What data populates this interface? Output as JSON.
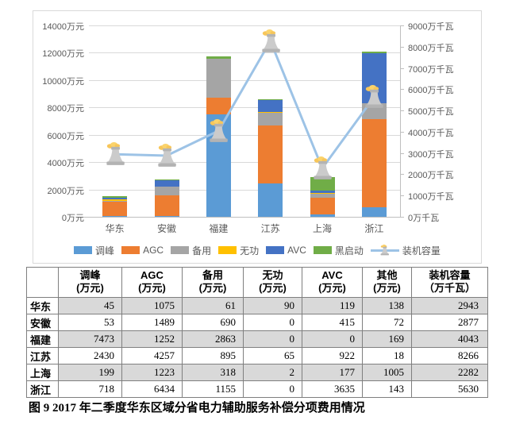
{
  "figure": {
    "caption": "图 9  2017 年二季度华东区域分省电力辅助服务补偿分项费用情况"
  },
  "chart_data": {
    "type": "bar",
    "subtype": "stacked-bar-with-line-overlay",
    "categories": [
      "华东",
      "安徽",
      "福建",
      "江苏",
      "上海",
      "浙江"
    ],
    "series": [
      {
        "name": "调峰",
        "role": "bar",
        "axis": "left",
        "color": "#5b9bd5",
        "values": [
          45,
          53,
          7473,
          2430,
          199,
          718
        ]
      },
      {
        "name": "AGC",
        "role": "bar",
        "axis": "left",
        "color": "#ed7d31",
        "values": [
          1075,
          1489,
          1252,
          4257,
          1223,
          6434
        ]
      },
      {
        "name": "备用",
        "role": "bar",
        "axis": "left",
        "color": "#a5a5a5",
        "values": [
          61,
          690,
          2863,
          895,
          318,
          1155
        ]
      },
      {
        "name": "无功",
        "role": "bar",
        "axis": "left",
        "color": "#ffc000",
        "values": [
          90,
          0,
          0,
          65,
          2,
          0
        ]
      },
      {
        "name": "AVC",
        "role": "bar",
        "axis": "left",
        "color": "#4472c4",
        "values": [
          119,
          415,
          0,
          922,
          177,
          3635
        ]
      },
      {
        "name": "黑启动",
        "role": "bar",
        "axis": "left",
        "color": "#70ad47",
        "values": [
          138,
          72,
          169,
          18,
          1005,
          143
        ]
      },
      {
        "name": "装机容量",
        "role": "line",
        "axis": "right",
        "color": "#9dc3e6",
        "marker": "cooling-tower-icon",
        "values": [
          2943,
          2877,
          4043,
          8266,
          2282,
          5630
        ]
      }
    ],
    "left_axis": {
      "min": 0,
      "max": 14000,
      "step": 2000,
      "suffix": "万元",
      "labels": [
        "14000万元",
        "12000万元",
        "10000万元",
        "8000万元",
        "6000万元",
        "4000万元",
        "2000万元",
        "0万元"
      ]
    },
    "right_axis": {
      "min": 0,
      "max": 9000,
      "step": 1000,
      "suffix": "万千瓦",
      "labels": [
        "9000万千瓦",
        "8000万千瓦",
        "7000万千瓦",
        "6000万千瓦",
        "5000万千瓦",
        "4000万千瓦",
        "3000万千瓦",
        "2000万千瓦",
        "1000万千瓦",
        "0万千瓦"
      ]
    },
    "legend_position": "bottom",
    "grid": true
  },
  "table": {
    "headers": [
      {
        "line1": "",
        "line2": ""
      },
      {
        "line1": "调峰",
        "line2": "(万元)"
      },
      {
        "line1": "AGC",
        "line2": "(万元)"
      },
      {
        "line1": "备用",
        "line2": "(万元)"
      },
      {
        "line1": "无功",
        "line2": "(万元)"
      },
      {
        "line1": "AVC",
        "line2": "(万元)"
      },
      {
        "line1": "其他",
        "line2": "(万元)"
      },
      {
        "line1": "装机容量",
        "line2": "（万千瓦）"
      }
    ],
    "rows": [
      {
        "region": "华东",
        "values": [
          45,
          1075,
          61,
          90,
          119,
          138,
          2943
        ]
      },
      {
        "region": "安徽",
        "values": [
          53,
          1489,
          690,
          0,
          415,
          72,
          2877
        ]
      },
      {
        "region": "福建",
        "values": [
          7473,
          1252,
          2863,
          0,
          0,
          169,
          4043
        ]
      },
      {
        "region": "江苏",
        "values": [
          2430,
          4257,
          895,
          65,
          922,
          18,
          8266
        ]
      },
      {
        "region": "上海",
        "values": [
          199,
          1223,
          318,
          2,
          177,
          1005,
          2282
        ]
      },
      {
        "region": "浙江",
        "values": [
          718,
          6434,
          1155,
          0,
          3635,
          143,
          5630
        ]
      }
    ]
  },
  "colors": {
    "grid": "#d9d9d9",
    "axis_text": "#595959",
    "table_band": "#d9d9d9",
    "table_border": "#7f7f7f",
    "line_series": "#9dc3e6",
    "marker_smoke": "#f7c65a",
    "marker_body": "#cbcbcb"
  }
}
